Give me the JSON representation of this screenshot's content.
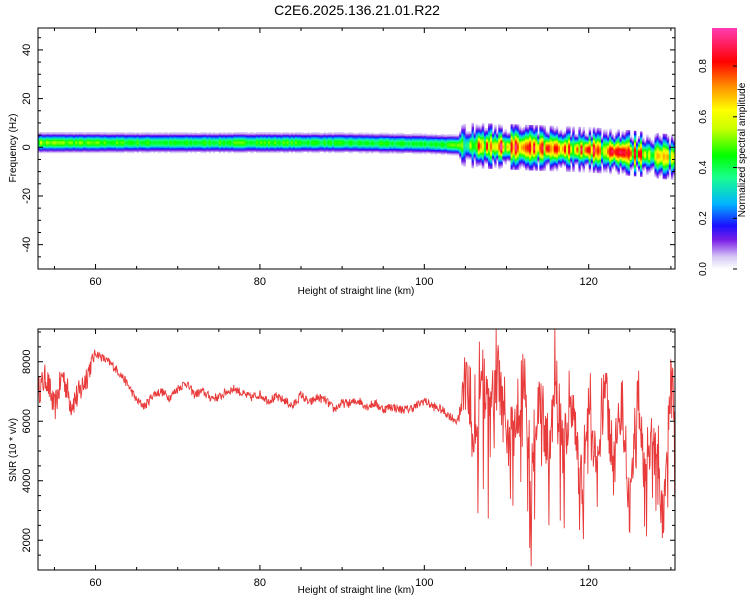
{
  "title": "C2E6.2025.136.21.01.R22",
  "chart_data": [
    {
      "type": "heatmap",
      "xlabel": "Height of straight line (km)",
      "ylabel": "Frequency (Hz)",
      "xlim": [
        53,
        130.5
      ],
      "ylim": [
        -50,
        49
      ],
      "x_ticks": [
        60,
        80,
        100,
        120
      ],
      "y_ticks": [
        40,
        20,
        0,
        -20,
        -40
      ],
      "grid": false,
      "ridge": {
        "height_km": [
          53,
          60,
          70,
          80,
          90,
          100,
          104,
          108,
          112,
          116,
          120,
          124,
          127,
          130
        ],
        "frequency_hz": [
          2,
          2,
          2,
          2,
          2,
          1.5,
          1,
          0.5,
          0,
          -0.5,
          -1,
          -2,
          -3,
          -4
        ],
        "amplitude": [
          0.55,
          0.5,
          0.45,
          0.5,
          0.45,
          0.45,
          0.5,
          0.9,
          0.85,
          0.8,
          0.85,
          0.85,
          0.75,
          0.7
        ]
      },
      "colorbar": {
        "label": "Normalized spectral amplitude",
        "range": [
          0,
          0.95
        ],
        "ticks": [
          0.0,
          0.2,
          0.4,
          0.6,
          0.8
        ],
        "tick_labels": [
          "0.0",
          "0.2",
          "0.4",
          "0.6",
          "0.8"
        ]
      }
    },
    {
      "type": "line",
      "xlabel": "Height of straight line (km)",
      "ylabel": "SNR (10 * v/v)",
      "xlim": [
        53,
        130.5
      ],
      "ylim": [
        1000,
        9100
      ],
      "x_ticks": [
        60,
        80,
        100,
        120
      ],
      "y_ticks": [
        2000,
        4000,
        6000,
        8000
      ],
      "grid": false,
      "color": "#e83a3a",
      "series": [
        {
          "x": [
            53,
            54,
            55,
            56,
            57,
            58,
            59,
            60,
            61,
            62,
            63,
            64,
            65,
            66,
            67,
            68,
            69,
            70,
            71,
            72,
            73,
            74,
            75,
            76,
            77,
            78,
            79,
            80,
            81,
            82,
            83,
            84,
            85,
            86,
            87,
            88,
            89,
            90,
            91,
            92,
            93,
            94,
            95,
            96,
            97,
            98,
            99,
            100,
            101,
            102,
            103,
            104,
            105,
            106,
            107,
            108,
            109,
            110,
            111,
            112,
            113,
            114,
            115,
            116,
            117,
            118,
            119,
            120,
            121,
            122,
            123,
            124,
            125,
            126,
            127,
            128,
            129,
            130
          ],
          "y": [
            7000,
            7500,
            6400,
            7600,
            6600,
            6900,
            7600,
            8300,
            8100,
            7900,
            7600,
            7200,
            6700,
            6500,
            6900,
            7000,
            6800,
            7100,
            7300,
            6900,
            7000,
            6800,
            6800,
            7000,
            7100,
            6900,
            6800,
            6900,
            6700,
            6800,
            6700,
            6500,
            6900,
            6600,
            6800,
            6700,
            6400,
            6600,
            6600,
            6700,
            6500,
            6600,
            6400,
            6500,
            6400,
            6400,
            6500,
            6700,
            6500,
            6400,
            6200,
            6000,
            7400,
            5000,
            7600,
            6000,
            7700,
            5200,
            5800,
            7500,
            4500,
            6900,
            4900,
            7300,
            5100,
            6700,
            3600,
            6500,
            3900,
            7200,
            4300,
            6800,
            3000,
            7100,
            3500,
            6300,
            2600,
            7000
          ],
          "noise_amplitude": [
            500,
            500,
            500,
            500,
            500,
            500,
            500,
            150,
            150,
            150,
            150,
            150,
            150,
            150,
            150,
            150,
            150,
            150,
            150,
            150,
            150,
            150,
            150,
            150,
            150,
            150,
            150,
            150,
            150,
            150,
            150,
            150,
            150,
            150,
            150,
            150,
            150,
            150,
            150,
            150,
            150,
            150,
            150,
            150,
            150,
            150,
            150,
            150,
            150,
            150,
            150,
            150,
            1000,
            1000,
            1000,
            1000,
            1000,
            1000,
            1000,
            1000,
            1000,
            1000,
            1000,
            1000,
            1000,
            1000,
            1000,
            1000,
            1000,
            1000,
            1000,
            1000,
            1000,
            1000,
            1000,
            1000,
            1000,
            1000
          ]
        }
      ]
    }
  ]
}
